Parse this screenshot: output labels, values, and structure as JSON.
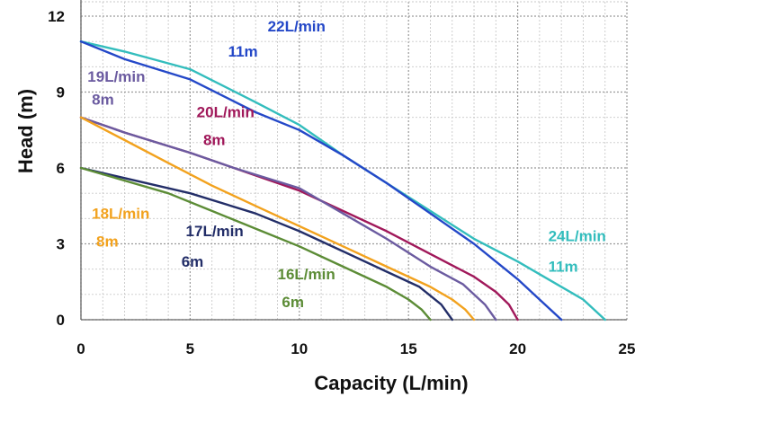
{
  "chart_data": {
    "type": "line",
    "title": "",
    "xlabel": "Capacity (L/min)",
    "ylabel": "Head (m)",
    "xlim": [
      0,
      25
    ],
    "ylim": [
      0,
      12
    ],
    "xticks": [
      "0",
      "5",
      "10",
      "15",
      "20",
      "25"
    ],
    "yticks": [
      "0",
      "3",
      "6",
      "9",
      "12"
    ],
    "grid": true,
    "series": [
      {
        "name": "24L/min",
        "sub": "11m",
        "color": "#33bdbd",
        "points": [
          [
            0,
            11.0
          ],
          [
            2,
            10.6
          ],
          [
            5,
            9.9
          ],
          [
            8,
            8.6
          ],
          [
            10,
            7.7
          ],
          [
            12,
            6.5
          ],
          [
            14,
            5.4
          ],
          [
            16,
            4.3
          ],
          [
            18,
            3.2
          ],
          [
            20,
            2.3
          ],
          [
            22,
            1.3
          ],
          [
            23,
            0.8
          ],
          [
            24,
            0
          ]
        ]
      },
      {
        "name": "22L/min",
        "sub": "11m",
        "color": "#2448c8",
        "points": [
          [
            0,
            11.0
          ],
          [
            2,
            10.3
          ],
          [
            5,
            9.5
          ],
          [
            8,
            8.2
          ],
          [
            10,
            7.5
          ],
          [
            12,
            6.5
          ],
          [
            14,
            5.4
          ],
          [
            16,
            4.2
          ],
          [
            18,
            3.0
          ],
          [
            19,
            2.3
          ],
          [
            20,
            1.6
          ],
          [
            21,
            0.8
          ],
          [
            22,
            0
          ]
        ]
      },
      {
        "name": "20L/min",
        "sub": "8m",
        "color": "#a0185a",
        "points": [
          [
            0,
            8.0
          ],
          [
            2,
            7.4
          ],
          [
            5,
            6.6
          ],
          [
            7,
            6.0
          ],
          [
            10,
            5.1
          ],
          [
            12,
            4.3
          ],
          [
            14,
            3.5
          ],
          [
            16,
            2.6
          ],
          [
            18,
            1.7
          ],
          [
            19,
            1.1
          ],
          [
            19.6,
            0.6
          ],
          [
            20,
            0
          ]
        ]
      },
      {
        "name": "19L/min",
        "sub": "8m",
        "color": "#6b5ba0",
        "points": [
          [
            0,
            8.0
          ],
          [
            2,
            7.4
          ],
          [
            5,
            6.6
          ],
          [
            7,
            6.0
          ],
          [
            10,
            5.2
          ],
          [
            12,
            4.2
          ],
          [
            14,
            3.2
          ],
          [
            16,
            2.1
          ],
          [
            17.5,
            1.4
          ],
          [
            18.5,
            0.6
          ],
          [
            19,
            0
          ]
        ]
      },
      {
        "name": "18L/min",
        "sub": "8m",
        "color": "#f2a21e",
        "points": [
          [
            0,
            8.0
          ],
          [
            2,
            7.1
          ],
          [
            4,
            6.2
          ],
          [
            6,
            5.3
          ],
          [
            8,
            4.5
          ],
          [
            10,
            3.7
          ],
          [
            12,
            2.9
          ],
          [
            14,
            2.1
          ],
          [
            16,
            1.3
          ],
          [
            17,
            0.8
          ],
          [
            17.6,
            0.4
          ],
          [
            18,
            0
          ]
        ]
      },
      {
        "name": "17L/min",
        "sub": "6m",
        "color": "#232e68",
        "points": [
          [
            0,
            6.0
          ],
          [
            2,
            5.6
          ],
          [
            5,
            5.0
          ],
          [
            8,
            4.2
          ],
          [
            10,
            3.5
          ],
          [
            12,
            2.7
          ],
          [
            14,
            1.9
          ],
          [
            15.5,
            1.3
          ],
          [
            16.5,
            0.6
          ],
          [
            17,
            0
          ]
        ]
      },
      {
        "name": "16L/min",
        "sub": "6m",
        "color": "#5c8c36",
        "points": [
          [
            0,
            6.0
          ],
          [
            2,
            5.5
          ],
          [
            4,
            5.0
          ],
          [
            6,
            4.3
          ],
          [
            8,
            3.6
          ],
          [
            10,
            2.9
          ],
          [
            12,
            2.1
          ],
          [
            14,
            1.3
          ],
          [
            15,
            0.8
          ],
          [
            15.6,
            0.4
          ],
          [
            16,
            0
          ]
        ]
      }
    ],
    "labels": [
      {
        "series": 1,
        "text": "22L/min",
        "lx": 11.2,
        "ly": 11.4,
        "anchor": "end"
      },
      {
        "series": 1,
        "text": "11m",
        "lx": 8.1,
        "ly": 10.4,
        "anchor": "end"
      },
      {
        "series": 3,
        "text": "19L/min",
        "lx": 0.3,
        "ly": 9.4,
        "anchor": "start"
      },
      {
        "series": 3,
        "text": "8m",
        "lx": 0.5,
        "ly": 8.5,
        "anchor": "start"
      },
      {
        "series": 2,
        "text": "20L/min",
        "lx": 5.3,
        "ly": 8.0,
        "anchor": "start"
      },
      {
        "series": 2,
        "text": "8m",
        "lx": 5.6,
        "ly": 6.9,
        "anchor": "start"
      },
      {
        "series": 4,
        "text": "18L/min",
        "lx": 0.5,
        "ly": 4.0,
        "anchor": "start"
      },
      {
        "series": 4,
        "text": "8m",
        "lx": 0.7,
        "ly": 2.9,
        "anchor": "start"
      },
      {
        "series": 5,
        "text": "17L/min",
        "lx": 4.8,
        "ly": 3.3,
        "anchor": "start"
      },
      {
        "series": 5,
        "text": "6m",
        "lx": 4.6,
        "ly": 2.1,
        "anchor": "start"
      },
      {
        "series": 6,
        "text": "16L/min",
        "lx": 9.0,
        "ly": 1.6,
        "anchor": "start"
      },
      {
        "series": 6,
        "text": "6m",
        "lx": 9.2,
        "ly": 0.5,
        "anchor": "start"
      },
      {
        "series": 0,
        "text": "24L/min",
        "lx": 21.4,
        "ly": 3.1,
        "anchor": "start"
      },
      {
        "series": 0,
        "text": "11m",
        "lx": 21.4,
        "ly": 1.9,
        "anchor": "start"
      }
    ]
  }
}
